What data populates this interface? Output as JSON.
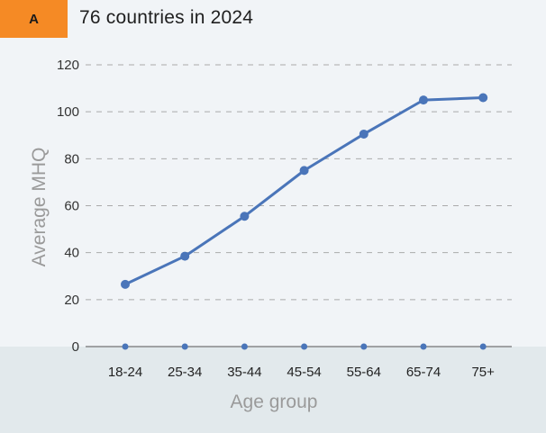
{
  "panel": {
    "badge": "A",
    "title": "76 countries in 2024"
  },
  "colors": {
    "badge": "#f58a25",
    "line": "#4a75b9",
    "grid": "#aaaaaa",
    "band": "#e2e9ec"
  },
  "chart_data": {
    "type": "line",
    "title": "76 countries in 2024",
    "xlabel": "Age group",
    "ylabel": "Average MHQ",
    "categories": [
      "18-24",
      "25-34",
      "35-44",
      "45-54",
      "55-64",
      "65-74",
      "75+"
    ],
    "series": [
      {
        "values": [
          26.5,
          38.5,
          55.5,
          75,
          90.5,
          105,
          106
        ]
      },
      {
        "values": [
          0,
          0,
          0,
          0,
          0,
          0,
          0
        ]
      }
    ],
    "yticks": [
      0,
      20,
      40,
      60,
      80,
      100,
      120
    ],
    "ylim": [
      0,
      120
    ],
    "grid": "horizontal dashed",
    "legend": "none"
  }
}
